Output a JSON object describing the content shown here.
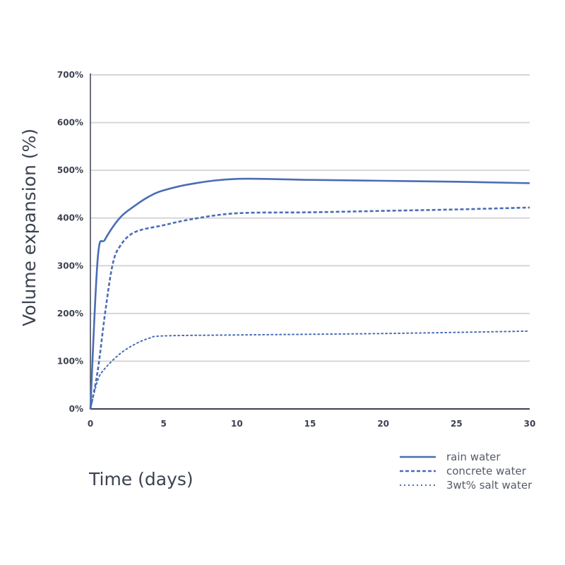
{
  "chart_data": {
    "type": "line",
    "xlabel": "Time (days)",
    "ylabel": "Volume expansion (%)",
    "xlim": [
      0,
      30
    ],
    "ylim": [
      0,
      700
    ],
    "xticks": [
      "0",
      "5",
      "10",
      "15",
      "20",
      "25",
      "30"
    ],
    "yticks": [
      "0%",
      "100%",
      "200%",
      "300%",
      "400%",
      "500%",
      "600%",
      "700%"
    ],
    "grid": "horizontal",
    "legend": "bottom-right",
    "color": "#4a6db5",
    "series": [
      {
        "name": "rain water",
        "style": "solid",
        "x": [
          0,
          0.5,
          1,
          2,
          3,
          4,
          5,
          7,
          10,
          15,
          20,
          25,
          30
        ],
        "y": [
          0,
          315,
          355,
          400,
          425,
          445,
          458,
          472,
          482,
          480,
          478,
          476,
          473
        ]
      },
      {
        "name": "concrete water",
        "style": "dashed",
        "x": [
          0,
          0.5,
          1,
          1.5,
          2,
          3,
          5,
          7,
          10,
          15,
          20,
          25,
          30
        ],
        "y": [
          0,
          80,
          200,
          300,
          340,
          370,
          385,
          398,
          410,
          412,
          415,
          418,
          422
        ]
      },
      {
        "name": "3wt% salt water",
        "style": "dotted",
        "x": [
          0,
          0.5,
          1,
          2,
          3,
          4,
          5,
          10,
          20,
          30
        ],
        "y": [
          0,
          60,
          85,
          115,
          135,
          148,
          153,
          155,
          158,
          163
        ]
      }
    ]
  }
}
